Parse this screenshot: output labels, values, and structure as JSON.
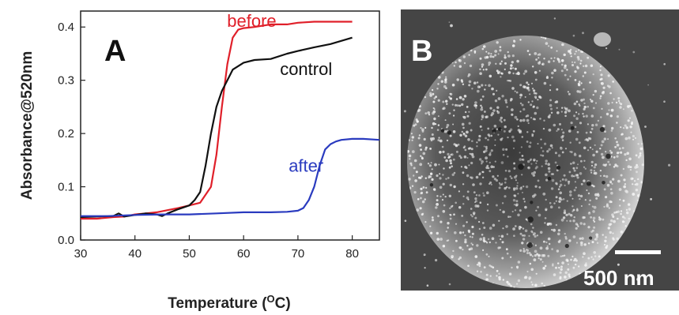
{
  "chart_data": {
    "type": "line",
    "panel_label": "A",
    "xlabel": "Temperature (",
    "xlabel_unit_sup": "O",
    "xlabel_unit_tail": "C)",
    "ylabel": "Absorbance@520nm",
    "xlim": [
      30,
      85
    ],
    "ylim": [
      0.0,
      0.43
    ],
    "xticks": [
      "30",
      "40",
      "50",
      "60",
      "70",
      "80"
    ],
    "yticks": [
      "0.0",
      "0.1",
      "0.2",
      "0.3",
      "0.4"
    ],
    "series": [
      {
        "name": "before",
        "color": "#e0202a",
        "x": [
          30,
          33,
          36,
          38,
          40,
          42,
          44,
          46,
          48,
          50,
          52,
          54,
          55,
          56,
          57,
          58,
          59,
          60,
          62,
          65,
          68,
          70,
          73,
          76,
          80
        ],
        "y": [
          0.04,
          0.04,
          0.043,
          0.044,
          0.048,
          0.05,
          0.052,
          0.056,
          0.06,
          0.065,
          0.07,
          0.1,
          0.16,
          0.25,
          0.33,
          0.38,
          0.395,
          0.398,
          0.4,
          0.405,
          0.405,
          0.408,
          0.41,
          0.41,
          0.41
        ]
      },
      {
        "name": "control",
        "color": "#111111",
        "x": [
          30,
          33,
          36,
          37,
          38,
          40,
          42,
          44,
          45,
          46,
          48,
          50,
          51,
          52,
          53,
          54,
          55,
          56,
          57,
          58,
          60,
          62,
          65,
          68,
          70,
          73,
          76,
          80
        ],
        "y": [
          0.043,
          0.044,
          0.045,
          0.05,
          0.044,
          0.047,
          0.05,
          0.048,
          0.045,
          0.05,
          0.058,
          0.065,
          0.075,
          0.09,
          0.14,
          0.2,
          0.25,
          0.28,
          0.3,
          0.32,
          0.333,
          0.338,
          0.34,
          0.35,
          0.355,
          0.362,
          0.368,
          0.38
        ]
      },
      {
        "name": "after",
        "color": "#2a3bbf",
        "x": [
          30,
          35,
          40,
          45,
          50,
          55,
          60,
          65,
          68,
          70,
          71,
          72,
          73,
          74,
          75,
          76,
          77,
          78,
          80,
          82,
          85
        ],
        "y": [
          0.045,
          0.045,
          0.047,
          0.048,
          0.048,
          0.05,
          0.052,
          0.052,
          0.053,
          0.055,
          0.06,
          0.075,
          0.1,
          0.14,
          0.17,
          0.18,
          0.185,
          0.188,
          0.19,
          0.19,
          0.188
        ]
      }
    ],
    "annotations": [
      {
        "text": "before",
        "color": "#e0202a",
        "x": 61.5,
        "y": 0.4
      },
      {
        "text": "control",
        "color": "#111111",
        "x": 71.5,
        "y": 0.31
      },
      {
        "text": "after",
        "color": "#2a3bbf",
        "x": 71.5,
        "y": 0.128
      }
    ]
  },
  "image_panel": {
    "panel_label": "B",
    "scale_bar_label": "500 nm"
  }
}
